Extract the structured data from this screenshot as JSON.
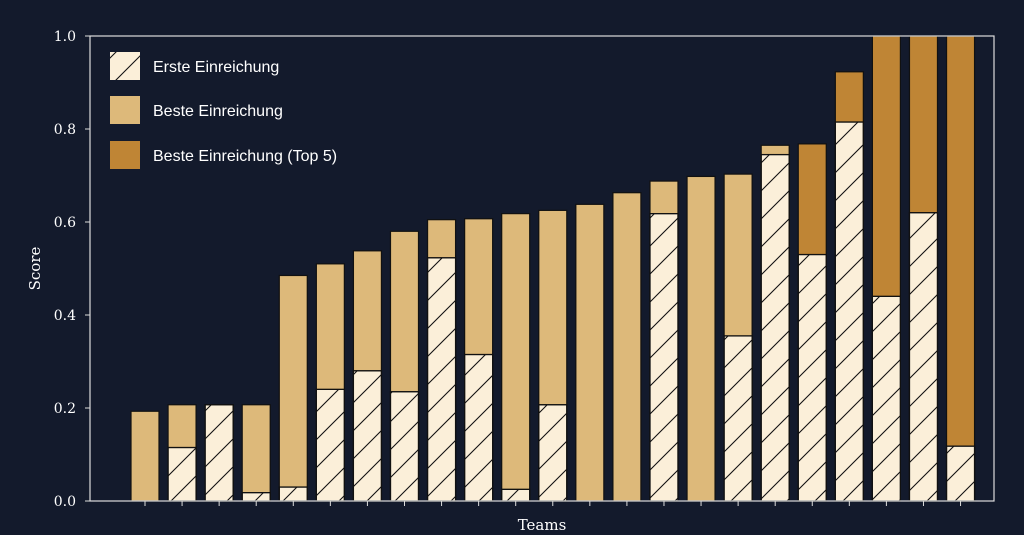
{
  "chart_data": {
    "type": "bar",
    "xlabel": "Teams",
    "ylabel": "Score",
    "ylim": [
      0,
      1.0
    ],
    "yticks": [
      "0.0",
      "0.2",
      "0.4",
      "0.6",
      "0.8",
      "1.0"
    ],
    "legend": {
      "placement": "top-left",
      "entries": [
        {
          "key": "first",
          "label": "Erste Einreichung"
        },
        {
          "key": "best",
          "label": "Beste Einreichung"
        },
        {
          "key": "top5",
          "label": "Beste Einreichung (Top 5)"
        }
      ]
    },
    "series": [
      {
        "key": "first",
        "label": "Erste Einreichung",
        "values": [
          0,
          0.115,
          0.207,
          0.018,
          0.03,
          0.24,
          0.28,
          0.235,
          0.523,
          0.315,
          0.025,
          0.207,
          0,
          0,
          0.618,
          0,
          0.355,
          0.745,
          0.53,
          0.815,
          0.44,
          0.62,
          0.118
        ]
      },
      {
        "key": "best",
        "label": "Beste Einreichung",
        "values": [
          0.193,
          0.207,
          0.207,
          0.207,
          0.485,
          0.51,
          0.538,
          0.58,
          0.605,
          0.607,
          0.618,
          0.625,
          0.638,
          0.663,
          0.688,
          0.698,
          0.703,
          0.765,
          0.768,
          0.923,
          1.0,
          1.0,
          1.0
        ]
      }
    ],
    "top5_indices": [
      18,
      19,
      20,
      21,
      22
    ],
    "grid": false,
    "colors": {
      "background": "#131a2c",
      "first": "#fbefd9",
      "best": "#ddb97a",
      "top5": "#bf8535",
      "edge": "#111111",
      "axis": "#dddddd",
      "text": "#ffffff"
    }
  }
}
